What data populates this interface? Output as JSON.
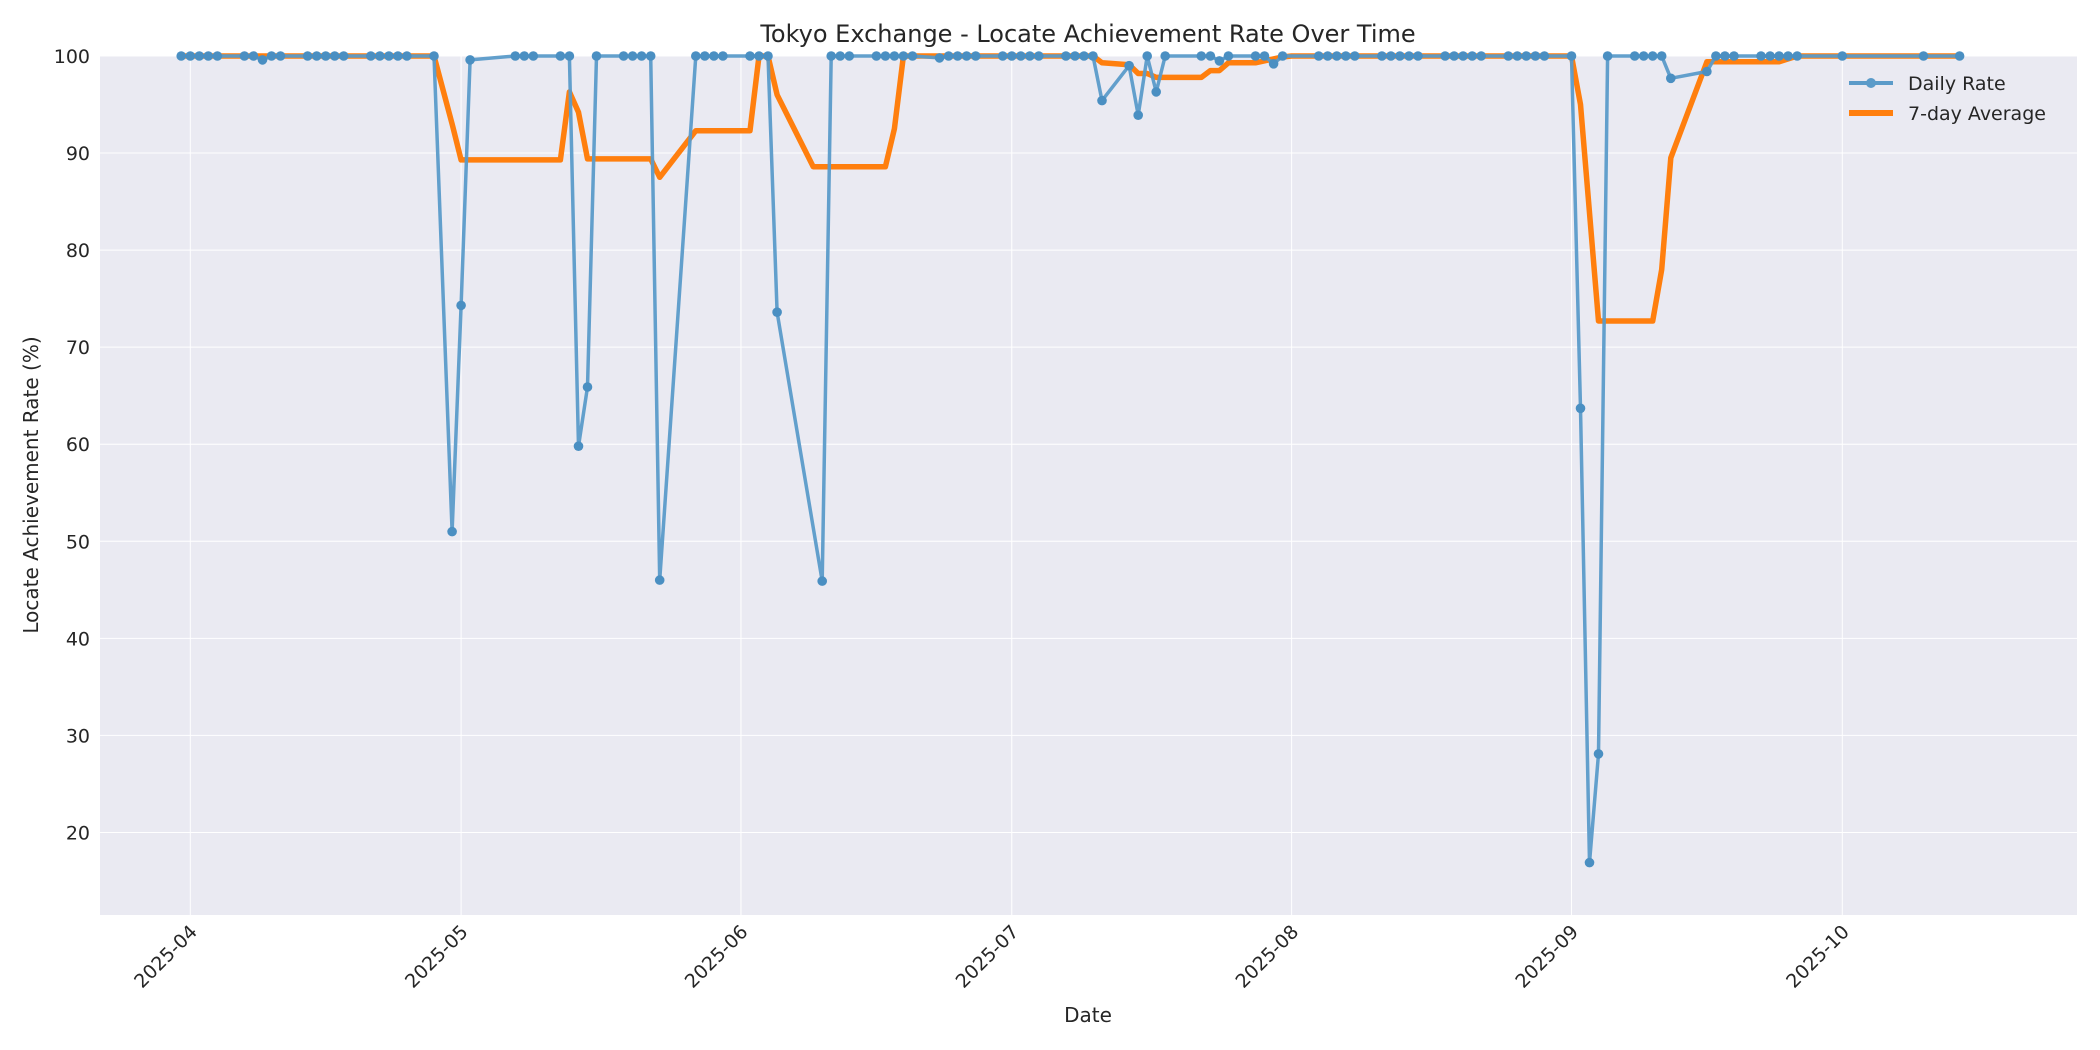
{
  "chart_data": {
    "type": "line",
    "title": "Tokyo Exchange - Locate Achievement Rate Over Time",
    "xlabel": "Date",
    "ylabel": "Locate Achievement Rate (%)",
    "xlim": [
      "2025-03-22",
      "2025-10-27"
    ],
    "ylim": [
      11.5,
      100
    ],
    "y_ticks": [
      20,
      30,
      40,
      50,
      60,
      70,
      80,
      90,
      100
    ],
    "x_ticks": [
      {
        "date": "2025-04-01",
        "label": "2025-04"
      },
      {
        "date": "2025-05-01",
        "label": "2025-05"
      },
      {
        "date": "2025-06-01",
        "label": "2025-06"
      },
      {
        "date": "2025-07-01",
        "label": "2025-07"
      },
      {
        "date": "2025-08-01",
        "label": "2025-08"
      },
      {
        "date": "2025-09-01",
        "label": "2025-09"
      },
      {
        "date": "2025-10-01",
        "label": "2025-10"
      }
    ],
    "grid": true,
    "legend_position": "top-right",
    "series": [
      {
        "name": "Daily Rate",
        "color": "#5b9bc9",
        "marker": "circle",
        "points": [
          [
            "2025-03-31",
            100
          ],
          [
            "2025-04-01",
            100
          ],
          [
            "2025-04-02",
            100
          ],
          [
            "2025-04-03",
            100
          ],
          [
            "2025-04-04",
            100
          ],
          [
            "2025-04-07",
            100
          ],
          [
            "2025-04-08",
            100
          ],
          [
            "2025-04-09",
            99.6
          ],
          [
            "2025-04-10",
            100
          ],
          [
            "2025-04-11",
            100
          ],
          [
            "2025-04-14",
            100
          ],
          [
            "2025-04-15",
            100
          ],
          [
            "2025-04-16",
            100
          ],
          [
            "2025-04-17",
            100
          ],
          [
            "2025-04-18",
            100
          ],
          [
            "2025-04-21",
            100
          ],
          [
            "2025-04-22",
            100
          ],
          [
            "2025-04-23",
            100
          ],
          [
            "2025-04-24",
            100
          ],
          [
            "2025-04-25",
            100
          ],
          [
            "2025-04-28",
            100
          ],
          [
            "2025-04-30",
            51.0
          ],
          [
            "2025-05-01",
            74.3
          ],
          [
            "2025-05-02",
            99.6
          ],
          [
            "2025-05-07",
            100
          ],
          [
            "2025-05-08",
            100
          ],
          [
            "2025-05-09",
            100
          ],
          [
            "2025-05-12",
            100
          ],
          [
            "2025-05-13",
            100
          ],
          [
            "2025-05-14",
            59.8
          ],
          [
            "2025-05-15",
            65.9
          ],
          [
            "2025-05-16",
            100
          ],
          [
            "2025-05-19",
            100
          ],
          [
            "2025-05-20",
            100
          ],
          [
            "2025-05-21",
            100
          ],
          [
            "2025-05-22",
            100
          ],
          [
            "2025-05-23",
            46.0
          ],
          [
            "2025-05-27",
            100
          ],
          [
            "2025-05-28",
            100
          ],
          [
            "2025-05-29",
            100
          ],
          [
            "2025-05-30",
            100
          ],
          [
            "2025-06-02",
            100
          ],
          [
            "2025-06-03",
            100
          ],
          [
            "2025-06-04",
            100
          ],
          [
            "2025-06-05",
            73.6
          ],
          [
            "2025-06-10",
            45.9
          ],
          [
            "2025-06-11",
            100
          ],
          [
            "2025-06-12",
            100
          ],
          [
            "2025-06-13",
            100
          ],
          [
            "2025-06-16",
            100
          ],
          [
            "2025-06-17",
            100
          ],
          [
            "2025-06-18",
            100
          ],
          [
            "2025-06-19",
            100
          ],
          [
            "2025-06-20",
            100
          ],
          [
            "2025-06-23",
            99.8
          ],
          [
            "2025-06-24",
            100
          ],
          [
            "2025-06-25",
            100
          ],
          [
            "2025-06-26",
            100
          ],
          [
            "2025-06-27",
            100
          ],
          [
            "2025-06-30",
            100
          ],
          [
            "2025-07-01",
            100
          ],
          [
            "2025-07-02",
            100
          ],
          [
            "2025-07-03",
            100
          ],
          [
            "2025-07-04",
            100
          ],
          [
            "2025-07-07",
            100
          ],
          [
            "2025-07-08",
            100
          ],
          [
            "2025-07-09",
            100
          ],
          [
            "2025-07-10",
            100
          ],
          [
            "2025-07-11",
            95.4
          ],
          [
            "2025-07-14",
            99.0
          ],
          [
            "2025-07-15",
            93.9
          ],
          [
            "2025-07-16",
            100
          ],
          [
            "2025-07-17",
            96.3
          ],
          [
            "2025-07-18",
            100
          ],
          [
            "2025-07-22",
            100
          ],
          [
            "2025-07-23",
            100
          ],
          [
            "2025-07-24",
            99.5
          ],
          [
            "2025-07-25",
            100
          ],
          [
            "2025-07-28",
            100
          ],
          [
            "2025-07-29",
            100
          ],
          [
            "2025-07-30",
            99.2
          ],
          [
            "2025-07-31",
            100
          ],
          [
            "2025-08-04",
            100
          ],
          [
            "2025-08-05",
            100
          ],
          [
            "2025-08-06",
            100
          ],
          [
            "2025-08-07",
            100
          ],
          [
            "2025-08-08",
            100
          ],
          [
            "2025-08-11",
            100
          ],
          [
            "2025-08-12",
            100
          ],
          [
            "2025-08-13",
            100
          ],
          [
            "2025-08-14",
            100
          ],
          [
            "2025-08-15",
            100
          ],
          [
            "2025-08-18",
            100
          ],
          [
            "2025-08-19",
            100
          ],
          [
            "2025-08-20",
            100
          ],
          [
            "2025-08-21",
            100
          ],
          [
            "2025-08-22",
            100
          ],
          [
            "2025-08-25",
            100
          ],
          [
            "2025-08-26",
            100
          ],
          [
            "2025-08-27",
            100
          ],
          [
            "2025-08-28",
            100
          ],
          [
            "2025-08-29",
            100
          ],
          [
            "2025-09-01",
            100
          ],
          [
            "2025-09-02",
            63.7
          ],
          [
            "2025-09-03",
            16.9
          ],
          [
            "2025-09-04",
            28.1
          ],
          [
            "2025-09-05",
            100
          ],
          [
            "2025-09-08",
            100
          ],
          [
            "2025-09-09",
            100
          ],
          [
            "2025-09-10",
            100
          ],
          [
            "2025-09-11",
            100
          ],
          [
            "2025-09-12",
            97.7
          ],
          [
            "2025-09-16",
            98.4
          ],
          [
            "2025-09-17",
            100
          ],
          [
            "2025-09-18",
            100
          ],
          [
            "2025-09-19",
            100
          ],
          [
            "2025-09-22",
            100
          ],
          [
            "2025-09-23",
            100
          ],
          [
            "2025-09-24",
            100
          ],
          [
            "2025-09-25",
            100
          ],
          [
            "2025-09-26",
            100
          ],
          [
            "2025-10-01",
            100
          ],
          [
            "2025-10-10",
            100
          ],
          [
            "2025-10-14",
            100
          ]
        ]
      },
      {
        "name": "7-day Average",
        "color": "#ff7f0e",
        "marker": "none",
        "points": [
          [
            "2025-03-31",
            100
          ],
          [
            "2025-04-28",
            100
          ],
          [
            "2025-04-30",
            93.0
          ],
          [
            "2025-05-01",
            89.3
          ],
          [
            "2025-05-02",
            89.3
          ],
          [
            "2025-05-12",
            89.3
          ],
          [
            "2025-05-13",
            96.3
          ],
          [
            "2025-05-14",
            94.2
          ],
          [
            "2025-05-15",
            89.4
          ],
          [
            "2025-05-16",
            89.4
          ],
          [
            "2025-05-22",
            89.4
          ],
          [
            "2025-05-23",
            87.5
          ],
          [
            "2025-05-27",
            92.3
          ],
          [
            "2025-05-28",
            92.3
          ],
          [
            "2025-06-02",
            92.3
          ],
          [
            "2025-06-03",
            100
          ],
          [
            "2025-06-04",
            100
          ],
          [
            "2025-06-05",
            96.0
          ],
          [
            "2025-06-09",
            88.6
          ],
          [
            "2025-06-10",
            88.6
          ],
          [
            "2025-06-13",
            88.6
          ],
          [
            "2025-06-17",
            88.6
          ],
          [
            "2025-06-18",
            92.5
          ],
          [
            "2025-06-19",
            100
          ],
          [
            "2025-07-10",
            100
          ],
          [
            "2025-07-11",
            99.3
          ],
          [
            "2025-07-14",
            99.1
          ],
          [
            "2025-07-15",
            98.2
          ],
          [
            "2025-07-16",
            98.2
          ],
          [
            "2025-07-17",
            97.8
          ],
          [
            "2025-07-22",
            97.8
          ],
          [
            "2025-07-23",
            98.5
          ],
          [
            "2025-07-24",
            98.5
          ],
          [
            "2025-07-25",
            99.3
          ],
          [
            "2025-07-28",
            99.3
          ],
          [
            "2025-07-31",
            99.9
          ],
          [
            "2025-08-01",
            100
          ],
          [
            "2025-09-01",
            100
          ],
          [
            "2025-09-02",
            95.0
          ],
          [
            "2025-09-04",
            72.7
          ],
          [
            "2025-09-10",
            72.7
          ],
          [
            "2025-09-11",
            78.0
          ],
          [
            "2025-09-12",
            89.5
          ],
          [
            "2025-09-16",
            99.4
          ],
          [
            "2025-09-17",
            99.4
          ],
          [
            "2025-09-23",
            99.4
          ],
          [
            "2025-09-24",
            99.4
          ],
          [
            "2025-09-26",
            100
          ],
          [
            "2025-10-14",
            100
          ]
        ]
      }
    ]
  }
}
